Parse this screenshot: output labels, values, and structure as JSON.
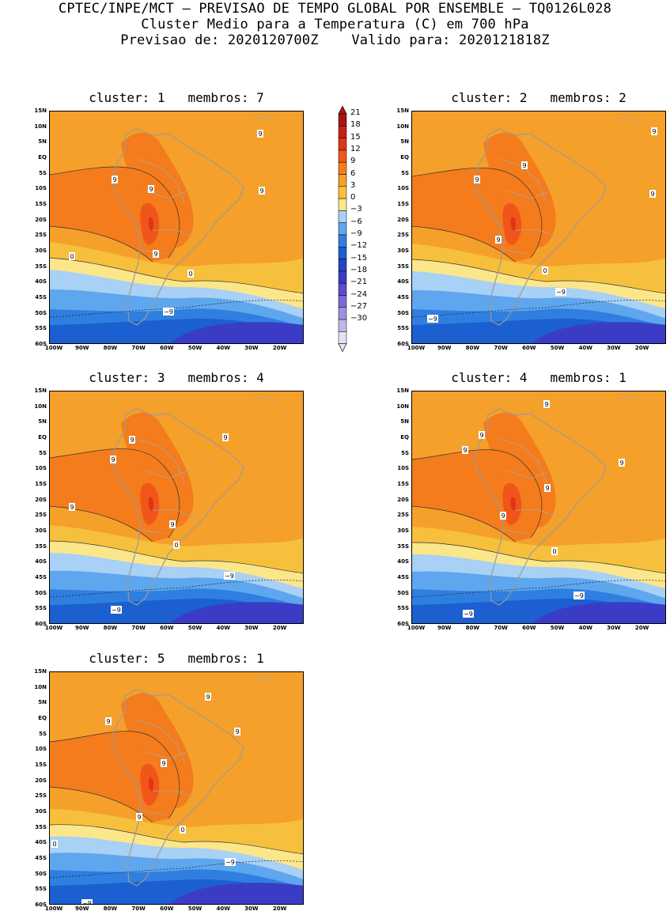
{
  "header": {
    "line1": "CPTEC/INPE/MCT – PREVISAO DE TEMPO GLOBAL POR ENSEMBLE – TQ0126L028",
    "line2": "Cluster Medio para a Temperatura (C) em 700 hPa",
    "line3": "Previsao de: 2020120700Z    Valido para: 2020121818Z"
  },
  "axes": {
    "lat_labels": [
      "15N",
      "10N",
      "5N",
      "EQ",
      "5S",
      "10S",
      "15S",
      "20S",
      "25S",
      "30S",
      "35S",
      "40S",
      "45S",
      "50S",
      "55S",
      "60S"
    ],
    "lon_labels": [
      "100W",
      "90W",
      "80W",
      "70W",
      "60W",
      "50W",
      "40W",
      "30W",
      "20W"
    ]
  },
  "colorbar": {
    "labels": [
      "21",
      "18",
      "15",
      "12",
      "9",
      "6",
      "3",
      "0",
      "−3",
      "−6",
      "−9",
      "−12",
      "−15",
      "−18",
      "−21",
      "−24",
      "−27",
      "−30"
    ],
    "colors": [
      "#a8131a",
      "#c81f1a",
      "#e03418",
      "#f0561a",
      "#f47c1c",
      "#f5a02a",
      "#f7c03c",
      "#fbe68a",
      "#a9d0f5",
      "#5ea6ee",
      "#2f7fe0",
      "#1b5fd0",
      "#2446c0",
      "#3a3cc6",
      "#5a4ccf",
      "#7d6ad8",
      "#a08fe0",
      "#c3b7ea",
      "#e6e0f4"
    ],
    "top_arrow_color": "#a8131a",
    "bottom_arrow_color": "#e6e0f4"
  },
  "panels": [
    {
      "cluster_label": "cluster:",
      "cluster": "1",
      "members_label": "membros:",
      "members": "7",
      "contour_labels": [
        "9",
        "9",
        "9",
        "9",
        "9",
        "0",
        "0",
        "−9"
      ]
    },
    {
      "cluster_label": "cluster:",
      "cluster": "2",
      "members_label": "membros:",
      "members": "2",
      "contour_labels": [
        "9",
        "9",
        "9",
        "9",
        "9",
        "0",
        "−9",
        "−9"
      ]
    },
    {
      "cluster_label": "cluster:",
      "cluster": "3",
      "members_label": "membros:",
      "members": "4",
      "contour_labels": [
        "9",
        "9",
        "9",
        "9",
        "9",
        "0",
        "−9",
        "−9"
      ]
    },
    {
      "cluster_label": "cluster:",
      "cluster": "4",
      "members_label": "membros:",
      "members": "1",
      "contour_labels": [
        "9",
        "9",
        "9",
        "9",
        "9",
        "9",
        "0",
        "−9",
        "−9"
      ]
    },
    {
      "cluster_label": "cluster:",
      "cluster": "5",
      "members_label": "membros:",
      "members": "1",
      "contour_labels": [
        "9",
        "9",
        "9",
        "9",
        "9",
        "0",
        "0",
        "−9",
        "−9"
      ]
    }
  ]
}
